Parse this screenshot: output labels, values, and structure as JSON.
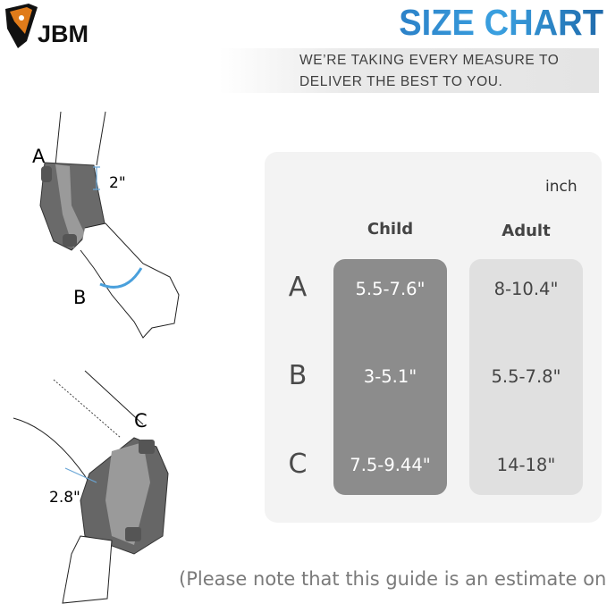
{
  "brand": {
    "logo_text": "JBM"
  },
  "header": {
    "title": "SIZE CHART",
    "tagline_line1": "WE’RE TAKING EVERY MEASURE TO",
    "tagline_line2": "DELIVER THE BEST TO YOU."
  },
  "illustration": {
    "elbow_labels": {
      "a": "A",
      "b": "B",
      "width": "2\""
    },
    "knee_labels": {
      "c": "C",
      "width": "2.8\""
    }
  },
  "table": {
    "unit": "inch",
    "columns": [
      "Child",
      "Adult"
    ],
    "rows": [
      {
        "label": "A",
        "child": "5.5-7.6\"",
        "adult": "8-10.4\""
      },
      {
        "label": "B",
        "child": "3-5.1\"",
        "adult": "5.5-7.8\""
      },
      {
        "label": "C",
        "child": "7.5-9.44\"",
        "adult": "14-18\""
      }
    ]
  },
  "note": "(Please note that this guide is an estimate only)",
  "colors": {
    "title_blue": "#2b7fc6",
    "child_column": "#8c8c8c",
    "adult_column": "#e0e0e0",
    "label_blue": "#4b77a8"
  }
}
